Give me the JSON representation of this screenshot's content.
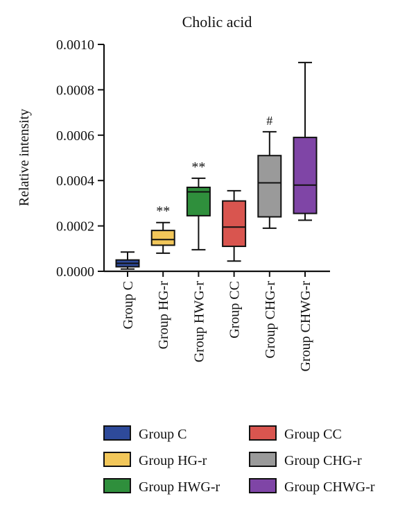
{
  "chart_data": {
    "type": "box",
    "title": "Cholic acid",
    "xlabel": "",
    "ylabel": "Relative intensity",
    "ylim": [
      0,
      0.001
    ],
    "yticks": [
      "0.0000",
      "0.0002",
      "0.0004",
      "0.0006",
      "0.0008",
      "0.0010"
    ],
    "grid": false,
    "legend_position": "bottom",
    "categories": [
      "Group C",
      "Group HG-r",
      "Group HWG-r",
      "Group CC",
      "Group CHG-r",
      "Group CHWG-r"
    ],
    "boxes": [
      {
        "name": "Group C",
        "min": 1e-05,
        "q1": 2e-05,
        "median": 3.5e-05,
        "q3": 5e-05,
        "max": 8.5e-05,
        "annotation": "",
        "color": "#2e4a9a"
      },
      {
        "name": "Group HG-r",
        "min": 8e-05,
        "q1": 0.000115,
        "median": 0.00014,
        "q3": 0.00018,
        "max": 0.000215,
        "annotation": "**",
        "color": "#f2c75a"
      },
      {
        "name": "Group HWG-r",
        "min": 9.5e-05,
        "q1": 0.000245,
        "median": 0.00035,
        "q3": 0.00037,
        "max": 0.00041,
        "annotation": "**",
        "color": "#2f8f3c"
      },
      {
        "name": "Group CC",
        "min": 4.5e-05,
        "q1": 0.00011,
        "median": 0.000195,
        "q3": 0.00031,
        "max": 0.000355,
        "annotation": "",
        "color": "#d9554f"
      },
      {
        "name": "Group CHG-r",
        "min": 0.00019,
        "q1": 0.00024,
        "median": 0.00039,
        "q3": 0.00051,
        "max": 0.000615,
        "annotation": "#",
        "color": "#9a9a9a"
      },
      {
        "name": "Group CHWG-r",
        "min": 0.000225,
        "q1": 0.000255,
        "median": 0.00038,
        "q3": 0.00059,
        "max": 0.00092,
        "annotation": "",
        "color": "#7f45a6"
      }
    ],
    "legend": [
      "Group C",
      "Group CC",
      "Group HG-r",
      "Group CHG-r",
      "Group HWG-r",
      "Group CHWG-r"
    ]
  }
}
